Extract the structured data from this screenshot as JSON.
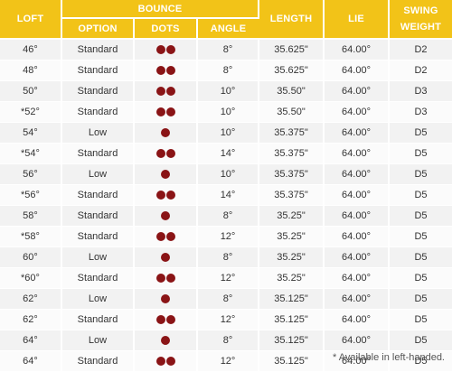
{
  "headers": {
    "loft": "LOFT",
    "bounce": "BOUNCE",
    "option": "OPTION",
    "dots": "DOTS",
    "angle": "ANGLE",
    "length": "LENGTH",
    "lie": "LIE",
    "swing_weight_line1": "SWING",
    "swing_weight_line2": "WEIGHT"
  },
  "dot_color": "#8a1416",
  "header_color": "#f2c318",
  "rows": [
    {
      "loft": "46°",
      "option": "Standard",
      "dots": 2,
      "angle": "8°",
      "length": "35.625\"",
      "lie": "64.00°",
      "sw": "D2"
    },
    {
      "loft": "48°",
      "option": "Standard",
      "dots": 2,
      "angle": "8°",
      "length": "35.625\"",
      "lie": "64.00°",
      "sw": "D2"
    },
    {
      "loft": "50°",
      "option": "Standard",
      "dots": 2,
      "angle": "10°",
      "length": "35.50\"",
      "lie": "64.00°",
      "sw": "D3"
    },
    {
      "loft": "*52°",
      "option": "Standard",
      "dots": 2,
      "angle": "10°",
      "length": "35.50\"",
      "lie": "64.00°",
      "sw": "D3"
    },
    {
      "loft": "54°",
      "option": "Low",
      "dots": 1,
      "angle": "10°",
      "length": "35.375\"",
      "lie": "64.00°",
      "sw": "D5"
    },
    {
      "loft": "*54°",
      "option": "Standard",
      "dots": 2,
      "angle": "14°",
      "length": "35.375\"",
      "lie": "64.00°",
      "sw": "D5"
    },
    {
      "loft": "56°",
      "option": "Low",
      "dots": 1,
      "angle": "10°",
      "length": "35.375\"",
      "lie": "64.00°",
      "sw": "D5"
    },
    {
      "loft": "*56°",
      "option": "Standard",
      "dots": 2,
      "angle": "14°",
      "length": "35.375\"",
      "lie": "64.00°",
      "sw": "D5"
    },
    {
      "loft": "58°",
      "option": "Standard",
      "dots": 1,
      "angle": "8°",
      "length": "35.25\"",
      "lie": "64.00°",
      "sw": "D5"
    },
    {
      "loft": "*58°",
      "option": "Standard",
      "dots": 2,
      "angle": "12°",
      "length": "35.25\"",
      "lie": "64.00°",
      "sw": "D5"
    },
    {
      "loft": "60°",
      "option": "Low",
      "dots": 1,
      "angle": "8°",
      "length": "35.25\"",
      "lie": "64.00°",
      "sw": "D5"
    },
    {
      "loft": "*60°",
      "option": "Standard",
      "dots": 2,
      "angle": "12°",
      "length": "35.25\"",
      "lie": "64.00°",
      "sw": "D5"
    },
    {
      "loft": "62°",
      "option": "Low",
      "dots": 1,
      "angle": "8°",
      "length": "35.125\"",
      "lie": "64.00°",
      "sw": "D5"
    },
    {
      "loft": "62°",
      "option": "Standard",
      "dots": 2,
      "angle": "12°",
      "length": "35.125\"",
      "lie": "64.00°",
      "sw": "D5"
    },
    {
      "loft": "64°",
      "option": "Low",
      "dots": 1,
      "angle": "8°",
      "length": "35.125\"",
      "lie": "64.00°",
      "sw": "D5"
    },
    {
      "loft": "64°",
      "option": "Standard",
      "dots": 2,
      "angle": "12°",
      "length": "35.125\"",
      "lie": "64.00°",
      "sw": "D5"
    }
  ],
  "footnote": "* Available in left-handed."
}
